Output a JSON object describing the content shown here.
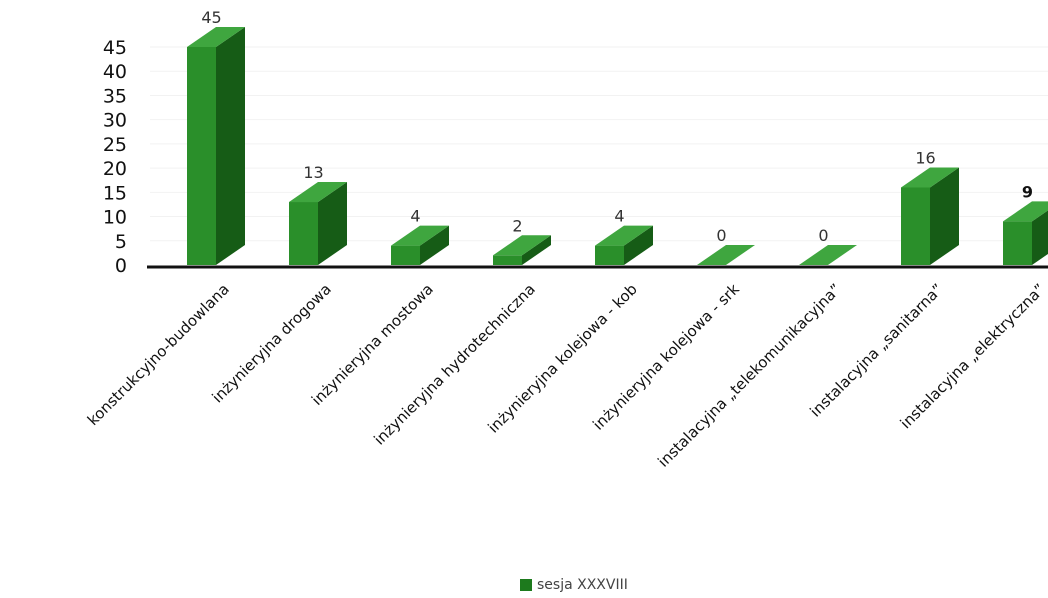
{
  "chart_data": {
    "type": "bar",
    "categories": [
      "konstrukcyjno-budowlana",
      "inżynieryjna drogowa",
      "inżynieryjna mostowa",
      "inżynieryjna hydrotechniczna",
      "inżynieryjna kolejowa - kob",
      "inżynieryjna kolejowa - srk",
      "instalacyjna „telekomunikacyjna”",
      "instalacyjna „sanitarna”",
      "instalacyjna „elektryczna”"
    ],
    "series": [
      {
        "name": "sesja XXXVIII",
        "values": [
          45,
          13,
          4,
          2,
          4,
          0,
          0,
          16,
          9
        ],
        "color": "#1d7a1d"
      }
    ],
    "yticks": [
      "0",
      "5",
      "10",
      "15",
      "20",
      "25",
      "30",
      "35",
      "40",
      "45"
    ],
    "ylim": [
      0,
      45
    ],
    "data_labels": [
      "45",
      "13",
      "4",
      "2",
      "4",
      "0",
      "0",
      "16",
      "9"
    ],
    "legend_position": "bottom",
    "grid": false,
    "style": "3d-column"
  }
}
